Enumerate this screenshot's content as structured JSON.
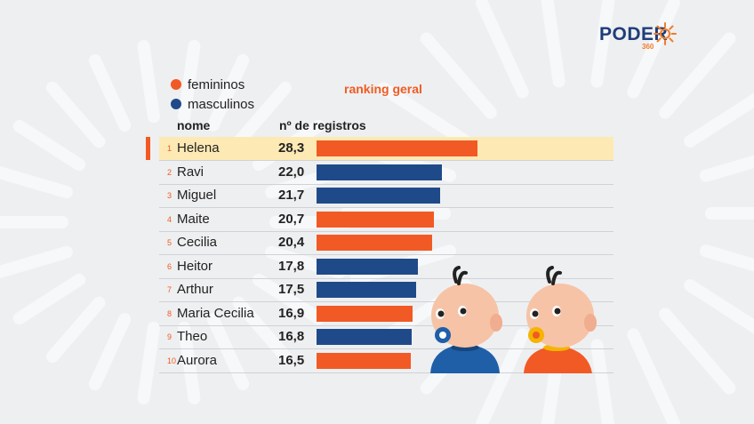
{
  "logo": {
    "name": "PODER",
    "sub": "360"
  },
  "legend": [
    {
      "label": "femininos",
      "color": "#f15a24"
    },
    {
      "label": "masculinos",
      "color": "#1f4a8a"
    }
  ],
  "header": {
    "ranking": "ranking geral",
    "col_name": "nome",
    "col_value": "nº de registros"
  },
  "chart_data": {
    "type": "bar",
    "title": "ranking geral",
    "categories": [
      "Helena",
      "Ravi",
      "Miguel",
      "Maite",
      "Cecilia",
      "Heitor",
      "Arthur",
      "Maria Cecilia",
      "Theo",
      "Aurora"
    ],
    "ranks": [
      "1",
      "2",
      "3",
      "4",
      "5",
      "6",
      "7",
      "8",
      "9",
      "10"
    ],
    "values": [
      28.3,
      22.0,
      21.7,
      20.7,
      20.4,
      17.8,
      17.5,
      16.9,
      16.8,
      16.5
    ],
    "value_labels": [
      "28,3",
      "22,0",
      "21,7",
      "20,7",
      "20,4",
      "17,8",
      "17,5",
      "16,9",
      "16,8",
      "16,5"
    ],
    "gender": [
      "femininos",
      "masculinos",
      "masculinos",
      "femininos",
      "femininos",
      "masculinos",
      "masculinos",
      "femininos",
      "masculinos",
      "femininos"
    ],
    "colors": {
      "femininos": "#f15a24",
      "masculinos": "#1f4a8a"
    },
    "highlight": "Helena",
    "xlim": [
      0,
      30
    ]
  }
}
